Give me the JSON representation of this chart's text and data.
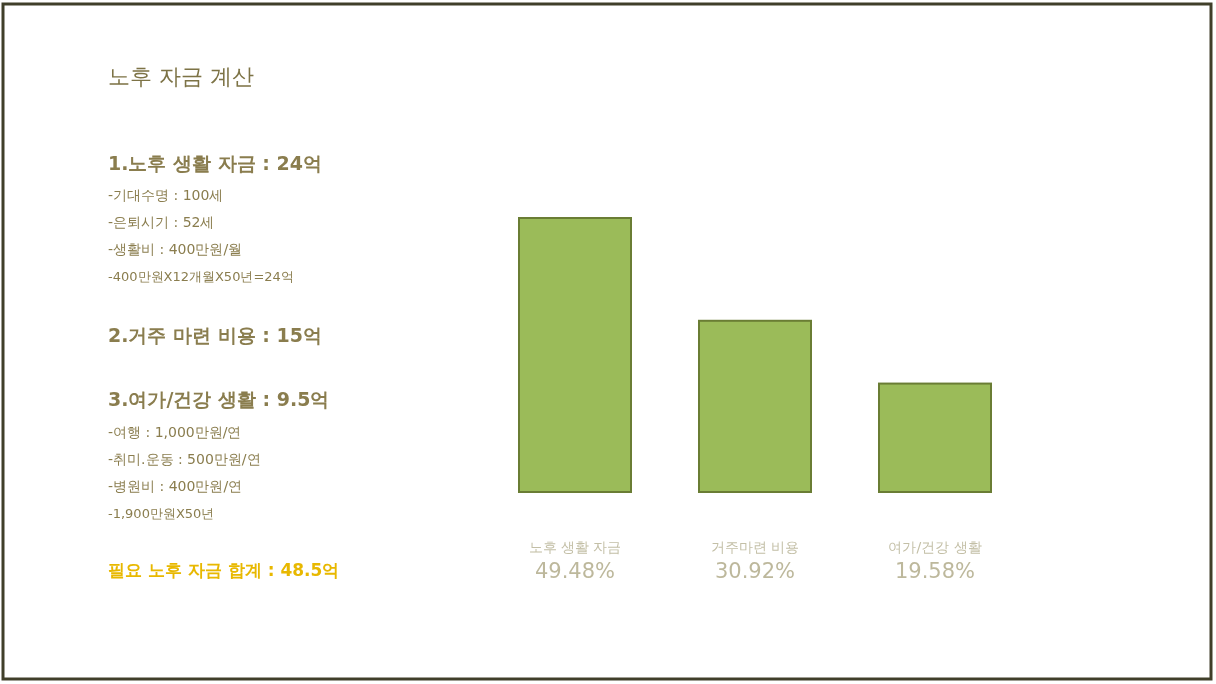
{
  "chart_data": {
    "type": "bar",
    "title": "노후 자금 계산",
    "categories": [
      "노후 생활 자금",
      "거주마련 비용",
      "여가/건강 생활"
    ],
    "values": [
      49.48,
      30.92,
      19.58
    ],
    "value_labels": [
      "49.48%",
      "30.92%",
      "19.58%"
    ],
    "color": "#9bbb59",
    "annotations": [
      "1.노후 생활 자금 : 24억",
      "-기대수명 : 100세",
      "-은퇴시기 : 52세",
      "-생활비 : 400만원/월",
      "-400만원X12개월X50년=24억",
      "2.거주 마련 비용 : 15억",
      "3.여가/건강 생활 : 9.5억",
      "-여행 : 1,000만원/연",
      "-취미.운동 : 500만원/연",
      "-병원비 : 400만원/연",
      "-1,900만원X50년",
      "필요 노후 자금 합계 : 48.5억"
    ]
  }
}
